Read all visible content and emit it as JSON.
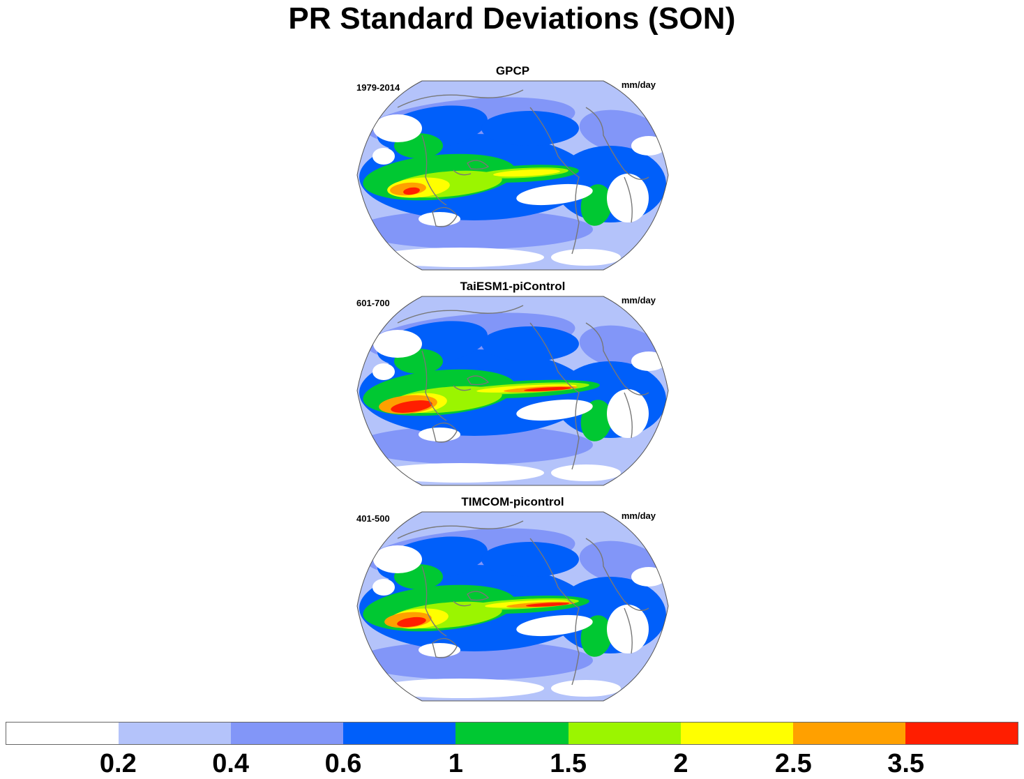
{
  "title": "PR Standard Deviations (SON)",
  "panels": [
    {
      "title": "GPCP",
      "period": "1979-2014",
      "units": "mm/day"
    },
    {
      "title": "TaiESM1-piControl",
      "period": "601-700",
      "units": "mm/day"
    },
    {
      "title": "TIMCOM-picontrol",
      "period": "401-500",
      "units": "mm/day"
    }
  ],
  "colorbar": {
    "colors": [
      "#ffffff",
      "#b4c3fa",
      "#8296f8",
      "#005ffa",
      "#00c832",
      "#9bf500",
      "#ffff00",
      "#ffa000",
      "#ff1e00"
    ],
    "tick_labels": [
      "0.2",
      "0.4",
      "0.6",
      "1",
      "1.5",
      "2",
      "2.5",
      "3.5"
    ]
  },
  "map": {
    "projection": "Robinson",
    "center_longitude": 180,
    "coastline_color": "#777777",
    "outline_color": "#555555"
  }
}
